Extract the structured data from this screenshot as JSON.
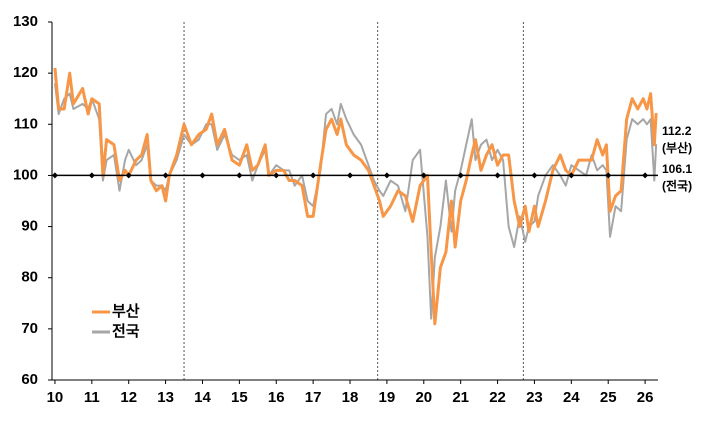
{
  "chart_data": {
    "type": "line",
    "x": [
      10.0,
      10.1,
      10.25,
      10.4,
      10.5,
      10.75,
      10.9,
      11.0,
      11.2,
      11.3,
      11.4,
      11.6,
      11.75,
      11.9,
      12.0,
      12.2,
      12.35,
      12.5,
      12.6,
      12.75,
      12.9,
      13.0,
      13.1,
      13.3,
      13.5,
      13.7,
      13.9,
      14.1,
      14.25,
      14.4,
      14.6,
      14.8,
      15.0,
      15.2,
      15.35,
      15.5,
      15.7,
      15.8,
      16.0,
      16.2,
      16.35,
      16.5,
      16.7,
      16.85,
      17.0,
      17.2,
      17.35,
      17.5,
      17.65,
      17.75,
      17.9,
      18.1,
      18.3,
      18.5,
      18.65,
      18.8,
      18.9,
      19.1,
      19.3,
      19.5,
      19.7,
      19.9,
      20.1,
      20.2,
      20.3,
      20.45,
      20.6,
      20.75,
      20.85,
      21.0,
      21.15,
      21.3,
      21.4,
      21.55,
      21.7,
      21.85,
      22.0,
      22.15,
      22.3,
      22.45,
      22.6,
      22.75,
      22.85,
      23.0,
      23.1,
      23.3,
      23.5,
      23.7,
      23.85,
      24.0,
      24.2,
      24.4,
      24.55,
      24.7,
      24.85,
      24.95,
      25.05,
      25.2,
      25.35,
      25.5,
      25.65,
      25.8,
      25.95,
      26.05,
      26.15,
      26.25,
      26.3
    ],
    "series": [
      {
        "name": "부산",
        "color": "#f79646",
        "end_label": [
          "112.2",
          "(부산)"
        ],
        "values": [
          121,
          113,
          113,
          120,
          114,
          117,
          112,
          115,
          114,
          100,
          107,
          106,
          99,
          101,
          100,
          103,
          104,
          108,
          99,
          97,
          98,
          95,
          100,
          104,
          110,
          106,
          108,
          109,
          112,
          106,
          109,
          103,
          102,
          106,
          101,
          102,
          106,
          100,
          101,
          101,
          99,
          99,
          98,
          92,
          92,
          102,
          109,
          111,
          108,
          111,
          106,
          104,
          103,
          101,
          98,
          95,
          92,
          94,
          97,
          96,
          91,
          98,
          100,
          85,
          71,
          82,
          85,
          95,
          86,
          95,
          99,
          104,
          107,
          101,
          104,
          106,
          102,
          104,
          104,
          95,
          90,
          94,
          89,
          94,
          90,
          95,
          101,
          104,
          101,
          100,
          103,
          103,
          103,
          107,
          104,
          106,
          93,
          96,
          97,
          111,
          115,
          113,
          115,
          113,
          116,
          106,
          112.2
        ]
      },
      {
        "name": "전국",
        "color": "#a6a6a6",
        "end_label": [
          "106.1",
          "(전국)"
        ],
        "values": [
          118,
          112,
          115,
          116,
          113,
          114,
          113,
          115,
          111,
          99,
          103,
          104,
          97,
          103,
          105,
          102,
          103,
          106,
          99,
          98,
          98,
          97,
          100,
          103,
          108,
          106,
          107,
          110,
          110,
          105,
          108,
          104,
          103,
          104,
          99,
          102,
          105,
          100,
          102,
          101,
          101,
          98,
          100,
          95,
          94,
          101,
          112,
          113,
          110,
          114,
          111,
          108,
          106,
          102,
          99,
          97,
          96,
          99,
          98,
          93,
          103,
          105,
          88,
          72,
          84,
          90,
          99,
          89,
          97,
          101,
          106,
          111,
          103,
          106,
          107,
          103,
          105,
          103,
          90,
          86,
          92,
          87,
          90,
          91,
          96,
          100,
          102,
          100,
          98,
          102,
          101,
          100,
          104,
          101,
          102,
          101,
          88,
          94,
          93,
          107,
          111,
          110,
          111,
          110,
          111,
          99,
          106.1
        ]
      }
    ],
    "xlim": [
      9.92,
      26.35
    ],
    "xticks": [
      10,
      11,
      12,
      13,
      14,
      15,
      16,
      17,
      18,
      19,
      20,
      21,
      22,
      23,
      24,
      25,
      26
    ],
    "ylim": [
      60,
      130
    ],
    "yticks": [
      60,
      70,
      80,
      90,
      100,
      110,
      120,
      130
    ],
    "hline": 100,
    "vlines": [
      13.5,
      18.75,
      22.7
    ],
    "legend": "lower-left"
  }
}
